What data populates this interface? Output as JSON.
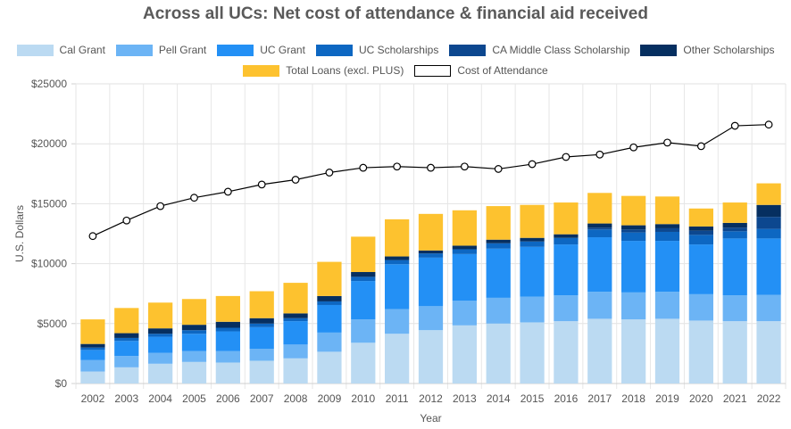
{
  "chart_data": {
    "type": "bar",
    "title": "Across all UCs: Net cost of attendance & financial aid received",
    "xlabel": "Year",
    "ylabel": "U.S. Dollars",
    "ylim": [
      0,
      25000
    ],
    "y_ticks": [
      "$0",
      "$5000",
      "$10000",
      "$15000",
      "$20000",
      "$25000"
    ],
    "grid": true,
    "legend_position": "top",
    "stacked": true,
    "categories": [
      "2002",
      "2003",
      "2004",
      "2005",
      "2006",
      "2007",
      "2008",
      "2009",
      "2010",
      "2011",
      "2012",
      "2013",
      "2014",
      "2015",
      "2016",
      "2017",
      "2018",
      "2019",
      "2020",
      "2021",
      "2022"
    ],
    "series": [
      {
        "name": "Cal Grant",
        "color": "#bbdaf2",
        "values": [
          1000,
          1350,
          1650,
          1800,
          1750,
          1900,
          2100,
          2650,
          3400,
          4150,
          4450,
          4850,
          5000,
          5100,
          5200,
          5400,
          5350,
          5400,
          5250,
          5200,
          5200
        ]
      },
      {
        "name": "Pell Grant",
        "color": "#6cb4f5",
        "values": [
          950,
          950,
          900,
          900,
          950,
          1000,
          1150,
          1600,
          1950,
          2050,
          2000,
          2050,
          2150,
          2150,
          2150,
          2250,
          2250,
          2250,
          2200,
          2150,
          2200
        ]
      },
      {
        "name": "UC Grant",
        "color": "#2390f5",
        "values": [
          850,
          1250,
          1350,
          1450,
          1650,
          1800,
          1950,
          2300,
          3200,
          3750,
          4050,
          3900,
          4100,
          4150,
          4250,
          4550,
          4300,
          4250,
          4150,
          4750,
          4700
        ]
      },
      {
        "name": "UC Scholarships",
        "color": "#0d67c2",
        "values": [
          200,
          250,
          250,
          300,
          300,
          300,
          250,
          300,
          350,
          350,
          350,
          400,
          450,
          450,
          550,
          650,
          700,
          750,
          800,
          600,
          800
        ]
      },
      {
        "name": "CA Middle Class Scholarship",
        "color": "#0c478f",
        "values": [
          0,
          0,
          0,
          0,
          0,
          0,
          0,
          0,
          0,
          0,
          0,
          0,
          0,
          0,
          0,
          150,
          250,
          300,
          350,
          300,
          1000
        ]
      },
      {
        "name": "Other Scholarships",
        "color": "#062f60",
        "values": [
          300,
          400,
          450,
          450,
          500,
          450,
          400,
          450,
          400,
          300,
          250,
          300,
          300,
          300,
          300,
          350,
          350,
          350,
          350,
          400,
          1000
        ]
      },
      {
        "name": "Total Loans (excl. PLUS)",
        "color": "#fdc22f",
        "values": [
          2050,
          2100,
          2150,
          2150,
          2150,
          2250,
          2550,
          2850,
          2950,
          3100,
          3050,
          2950,
          2800,
          2750,
          2650,
          2550,
          2450,
          2300,
          1500,
          1700,
          1800
        ]
      }
    ],
    "line_series": {
      "name": "Cost of Attendance",
      "color": "#000000",
      "values": [
        12300,
        13600,
        14800,
        15500,
        16000,
        16600,
        17000,
        17600,
        18000,
        18100,
        18000,
        18100,
        17900,
        18300,
        18900,
        19100,
        19700,
        20100,
        19800,
        21500,
        21600
      ]
    }
  }
}
